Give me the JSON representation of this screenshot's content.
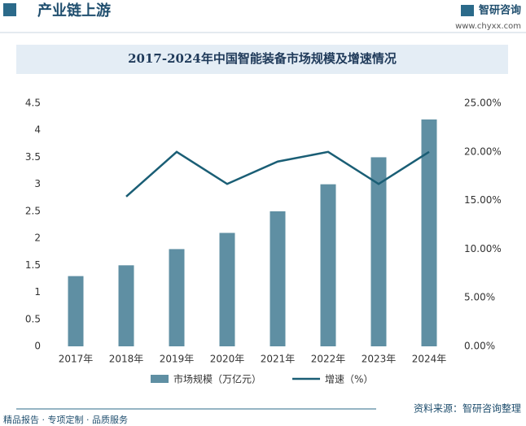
{
  "header": {
    "title": "产业链上游",
    "brand": "智研咨询",
    "url": "www.chyxx.com"
  },
  "footer": {
    "source": "资料来源：智研咨询整理",
    "slogan": "精品报告 · 专项定制 · 品质服务"
  },
  "chart_data": {
    "type": "bar-line",
    "title": "2017-2024年中国智能装备市场规模及增速情况",
    "categories": [
      "2017年",
      "2018年",
      "2019年",
      "2020年",
      "2021年",
      "2022年",
      "2023年",
      "2024年"
    ],
    "series": [
      {
        "name": "市场规模（万亿元）",
        "type": "bar",
        "color": "#5f8fa3",
        "values": [
          1.3,
          1.5,
          1.8,
          2.1,
          2.5,
          3.0,
          3.5,
          4.2
        ]
      },
      {
        "name": "增速（%）",
        "type": "line",
        "axis": "y2",
        "color": "#1a5e75",
        "values": [
          null,
          15.4,
          20.0,
          16.7,
          19.0,
          20.0,
          16.7,
          20.0
        ]
      }
    ],
    "ylim": [
      0,
      4.5
    ],
    "yticks": [
      0,
      0.5,
      1,
      1.5,
      2,
      2.5,
      3,
      3.5,
      4,
      4.5
    ],
    "y2lim": [
      0,
      25
    ],
    "y2ticks": [
      {
        "value": 0,
        "label": "0.00%"
      },
      {
        "value": 5,
        "label": "5.00%"
      },
      {
        "value": 10,
        "label": "10.00%"
      },
      {
        "value": 15,
        "label": "15.00%"
      },
      {
        "value": 20,
        "label": "20.00%"
      },
      {
        "value": 25,
        "label": "25.00%"
      }
    ],
    "legend": "bottom",
    "grid": false
  }
}
